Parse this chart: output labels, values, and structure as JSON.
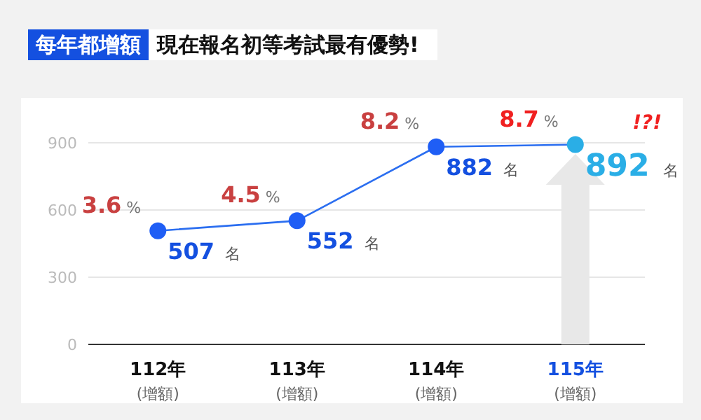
{
  "chart_data": {
    "type": "line",
    "title": "每年都增額",
    "subtitle": "現在報名初等考試最有優勢!",
    "categories": [
      "112年\n(增額)",
      "113年\n(增額)",
      "114年\n(增額)",
      "115年\n(增額)"
    ],
    "values": [
      507,
      552,
      882,
      892
    ],
    "value_labels": [
      "507 名",
      "552 名",
      "882 名",
      "892 名"
    ],
    "color": "#2b6ef0",
    "colors": [
      "#1f5ef5",
      "#1f5ef5",
      "#1f5ef5",
      "#2aaee6"
    ],
    "marker": "circle",
    "ylim": [
      0,
      900
    ],
    "yticks": [
      0,
      300,
      600,
      900
    ],
    "grid": "y",
    "annotations": [
      {
        "text": "3.6 %",
        "x": "112年\n(增額)",
        "y": 507
      },
      {
        "text": "4.5 %",
        "x": "113年\n(增額)",
        "y": 552
      },
      {
        "text": "8.2 %",
        "x": "114年\n(增額)",
        "y": 882
      },
      {
        "text": "8.7 %",
        "x": "115年\n(增額)",
        "y": 892
      },
      "!?!"
    ]
  }
}
